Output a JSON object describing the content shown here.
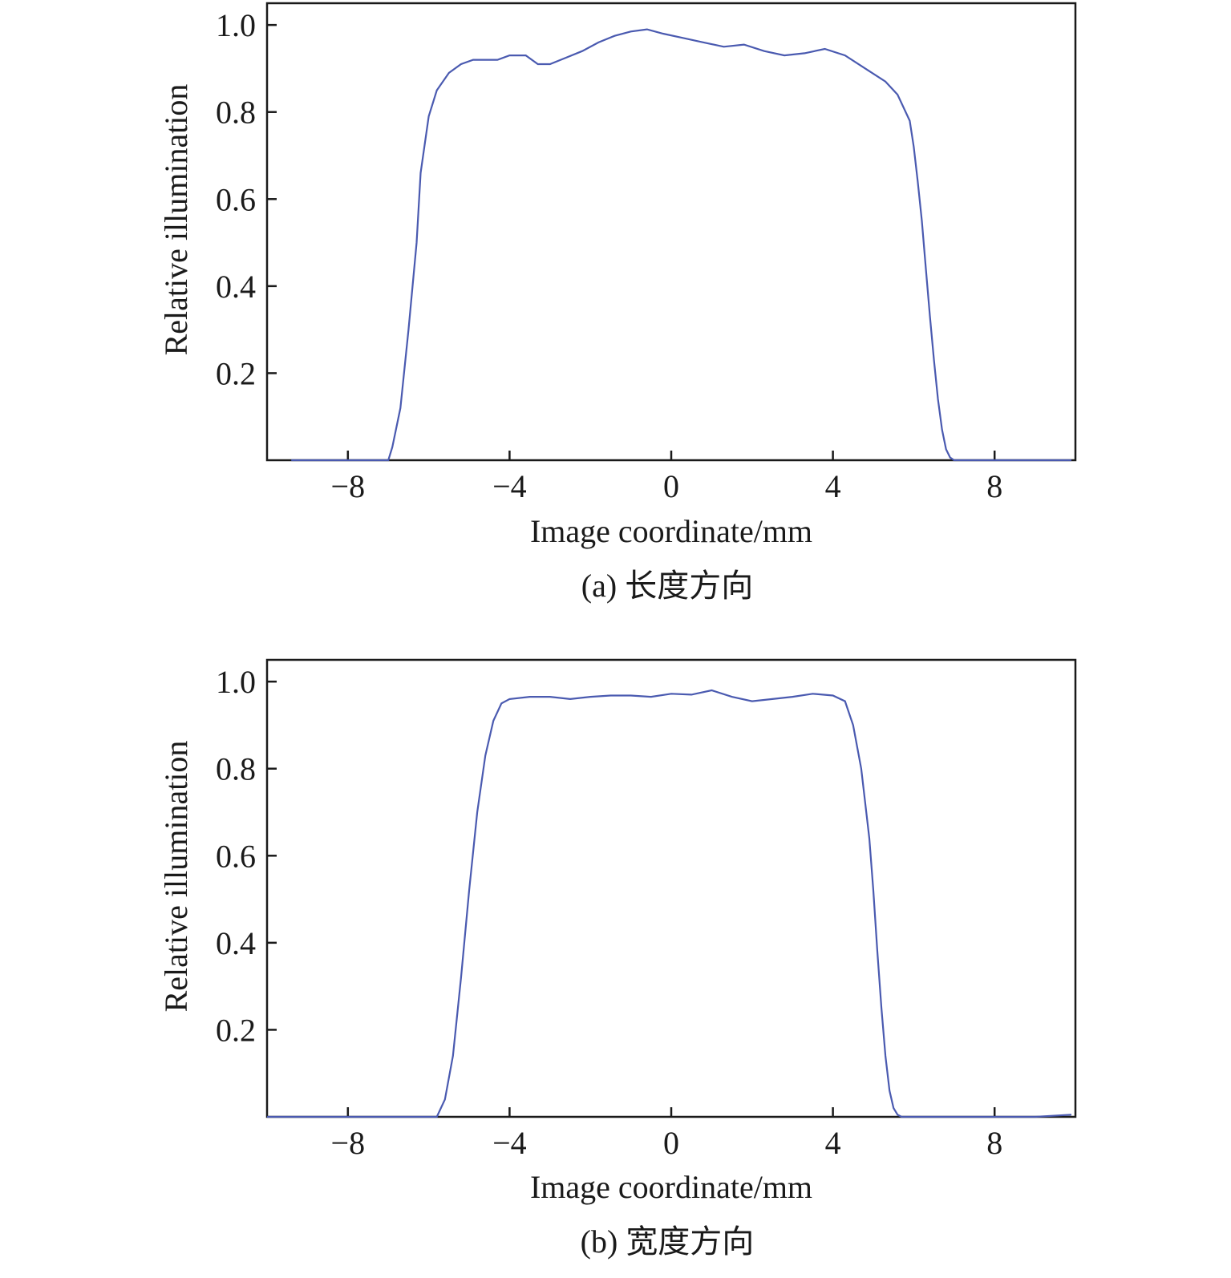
{
  "chart_data": [
    {
      "type": "line",
      "caption": "(a) 长度方向",
      "xlabel": "Image coordinate/mm",
      "ylabel": "Relative illumination",
      "xlim": [
        -10,
        10
      ],
      "ylim": [
        0,
        1.05
      ],
      "x_ticks": [
        -8,
        -4,
        0,
        4,
        8
      ],
      "x_tick_labels": [
        "−8",
        "−4",
        "0",
        "4",
        "8"
      ],
      "y_ticks": [
        0.2,
        0.4,
        0.6,
        0.8,
        1.0
      ],
      "y_tick_labels": [
        "0.2",
        "0.4",
        "0.6",
        "0.8",
        "1.0"
      ],
      "grid": false,
      "color": "#4a5ab0",
      "series": [
        {
          "x": [
            -9.4,
            -7.0,
            -6.9,
            -6.7,
            -6.5,
            -6.3,
            -6.2,
            -6.0,
            -5.8,
            -5.5,
            -5.2,
            -4.9,
            -4.6,
            -4.3,
            -4.0,
            -3.6,
            -3.3,
            -3.0,
            -2.6,
            -2.2,
            -1.8,
            -1.4,
            -1.0,
            -0.6,
            -0.2,
            0.3,
            0.8,
            1.3,
            1.8,
            2.3,
            2.8,
            3.3,
            3.8,
            4.3,
            4.8,
            5.3,
            5.6,
            5.9,
            6.0,
            6.1,
            6.2,
            6.3,
            6.4,
            6.5,
            6.6,
            6.7,
            6.8,
            6.9,
            7.0,
            7.2,
            9.9
          ],
          "y": [
            0,
            0,
            0.03,
            0.12,
            0.3,
            0.5,
            0.66,
            0.79,
            0.85,
            0.89,
            0.91,
            0.92,
            0.92,
            0.92,
            0.93,
            0.93,
            0.91,
            0.91,
            0.925,
            0.94,
            0.96,
            0.975,
            0.985,
            0.99,
            0.98,
            0.97,
            0.96,
            0.95,
            0.955,
            0.94,
            0.93,
            0.935,
            0.945,
            0.93,
            0.9,
            0.87,
            0.84,
            0.78,
            0.72,
            0.64,
            0.55,
            0.44,
            0.33,
            0.23,
            0.14,
            0.07,
            0.025,
            0.006,
            0,
            0,
            0
          ]
        }
      ]
    },
    {
      "type": "line",
      "caption": "(b) 宽度方向",
      "xlabel": "Image coordinate/mm",
      "ylabel": "Relative illumination",
      "xlim": [
        -10,
        10
      ],
      "ylim": [
        0,
        1.05
      ],
      "x_ticks": [
        -8,
        -4,
        0,
        4,
        8
      ],
      "x_tick_labels": [
        "−8",
        "−4",
        "0",
        "4",
        "8"
      ],
      "y_ticks": [
        0.2,
        0.4,
        0.6,
        0.8,
        1.0
      ],
      "y_tick_labels": [
        "0.2",
        "0.4",
        "0.6",
        "0.8",
        "1.0"
      ],
      "grid": false,
      "color": "#4a5ab0",
      "series": [
        {
          "x": [
            -10.0,
            -5.8,
            -5.6,
            -5.4,
            -5.2,
            -5.0,
            -4.8,
            -4.6,
            -4.4,
            -4.2,
            -4.0,
            -3.5,
            -3.0,
            -2.5,
            -2.0,
            -1.5,
            -1.0,
            -0.5,
            0.0,
            0.5,
            1.0,
            1.5,
            2.0,
            2.5,
            3.0,
            3.5,
            4.0,
            4.3,
            4.5,
            4.7,
            4.9,
            5.0,
            5.1,
            5.2,
            5.3,
            5.4,
            5.5,
            5.6,
            5.7,
            5.8,
            9.0,
            9.9
          ],
          "y": [
            0,
            0,
            0.04,
            0.14,
            0.32,
            0.52,
            0.7,
            0.83,
            0.91,
            0.95,
            0.96,
            0.965,
            0.965,
            0.96,
            0.965,
            0.968,
            0.968,
            0.965,
            0.972,
            0.97,
            0.98,
            0.965,
            0.955,
            0.96,
            0.965,
            0.972,
            0.968,
            0.955,
            0.9,
            0.8,
            0.64,
            0.52,
            0.38,
            0.25,
            0.14,
            0.06,
            0.02,
            0.005,
            0,
            0,
            0,
            0.005
          ]
        }
      ]
    }
  ]
}
